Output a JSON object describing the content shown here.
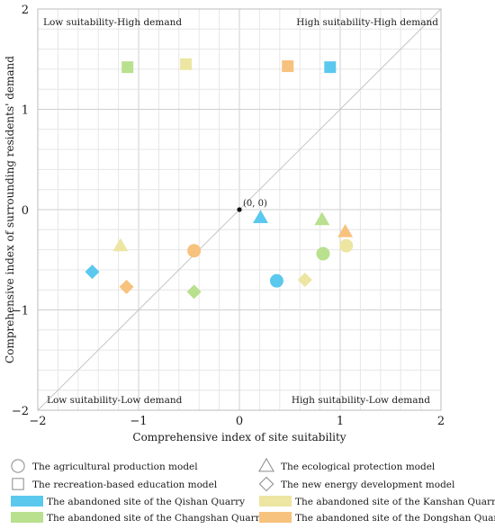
{
  "chart_data": {
    "type": "scatter",
    "xlabel": "Comprehensive index of site suitability",
    "ylabel": "Comprehensive index of surrounding residents' demand",
    "xlim": [
      -2,
      2
    ],
    "ylim": [
      -2,
      2
    ],
    "x_ticks": [
      "−2",
      "−1",
      "0",
      "1",
      "2"
    ],
    "y_ticks": [
      "−2",
      "−1",
      "0",
      "1",
      "2"
    ],
    "grid": true,
    "quadrant_labels": {
      "top_left": "Low suitability-High demand",
      "top_right": "High suitability-High demand",
      "bottom_left": "Low suitability-Low demand",
      "bottom_right": "High suitability-Low demand"
    },
    "origin_label": "(0,  0)",
    "sites": [
      {
        "name": "The abandoned site of the Qishan Quarry",
        "color": "#5bc8ee"
      },
      {
        "name": "The abandoned site of the Kanshan Quarry",
        "color": "#ece6a2"
      },
      {
        "name": "The abandoned site of the Changshan Quarry",
        "color": "#b9e08e"
      },
      {
        "name": "The abandoned site of the Dongshan Quarry",
        "color": "#f7c27e"
      }
    ],
    "models": [
      {
        "name": "The agricultural production model",
        "shape": "circle"
      },
      {
        "name": "The recreation-based education model",
        "shape": "square"
      },
      {
        "name": "The ecological protection model",
        "shape": "triangle"
      },
      {
        "name": "The new energy development model",
        "shape": "diamond"
      }
    ],
    "points": [
      {
        "site": 0,
        "model": 0,
        "x": 0.37,
        "y": -0.71
      },
      {
        "site": 0,
        "model": 1,
        "x": 0.9,
        "y": 1.42
      },
      {
        "site": 0,
        "model": 2,
        "x": 0.21,
        "y": -0.08
      },
      {
        "site": 0,
        "model": 3,
        "x": -1.46,
        "y": -0.62
      },
      {
        "site": 1,
        "model": 0,
        "x": 1.06,
        "y": -0.36
      },
      {
        "site": 1,
        "model": 1,
        "x": -0.53,
        "y": 1.45
      },
      {
        "site": 1,
        "model": 2,
        "x": -1.18,
        "y": -0.36
      },
      {
        "site": 1,
        "model": 3,
        "x": 0.65,
        "y": -0.7
      },
      {
        "site": 2,
        "model": 0,
        "x": 0.83,
        "y": -0.44
      },
      {
        "site": 2,
        "model": 1,
        "x": -1.11,
        "y": 1.42
      },
      {
        "site": 2,
        "model": 2,
        "x": 0.82,
        "y": -0.1
      },
      {
        "site": 2,
        "model": 3,
        "x": -0.45,
        "y": -0.82
      },
      {
        "site": 3,
        "model": 0,
        "x": -0.45,
        "y": -0.41
      },
      {
        "site": 3,
        "model": 1,
        "x": 0.48,
        "y": 1.43
      },
      {
        "site": 3,
        "model": 2,
        "x": 1.05,
        "y": -0.22
      },
      {
        "site": 3,
        "model": 3,
        "x": -1.12,
        "y": -0.77
      }
    ],
    "reference_line": "y = x"
  }
}
